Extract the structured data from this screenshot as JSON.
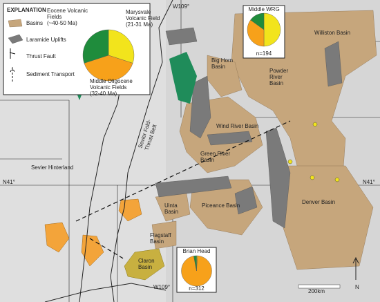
{
  "legend": {
    "title": "EXPLANATION",
    "items": [
      "Basins",
      "Laramide Uplifts",
      "Thrust Fault",
      "Sediment Transport"
    ],
    "pie": {
      "labels": [
        [
          "Marysvale",
          "Volcanic Field",
          "(21-31 Ma)"
        ],
        [
          "Middle Oligocene",
          "Volcanic Fields",
          "(32-40 Ma)"
        ],
        [
          "Eocene Volcanic",
          "Fields",
          "(~40-50 Ma)"
        ]
      ],
      "values": [
        30,
        40,
        30
      ],
      "colors": [
        "#f2e41c",
        "#f7a11a",
        "#1f8c3c"
      ]
    }
  },
  "pies": [
    {
      "title": "Middle WRG",
      "n": "n=194",
      "values": [
        50,
        35,
        15
      ],
      "colors": [
        "#f2e41c",
        "#f7a11a",
        "#1f8c3c"
      ]
    },
    {
      "title": "Brian Head",
      "n": "n=312",
      "values": [
        1,
        96,
        3
      ],
      "colors": [
        "#f2e41c",
        "#f7a11a",
        "#1f8c3c"
      ]
    }
  ],
  "map_labels": [
    {
      "lines": [
        "W109°"
      ]
    },
    {
      "lines": [
        "Williston Basin"
      ]
    },
    {
      "lines": [
        "Big Horn",
        "Basin"
      ]
    },
    {
      "lines": [
        "Powder",
        "River",
        "Basin"
      ]
    },
    {
      "lines": [
        "Wind River Basin"
      ]
    },
    {
      "lines": [
        "Green River",
        "Basin"
      ]
    },
    {
      "lines": [
        "Sevier Hinterland"
      ]
    },
    {
      "lines": [
        "N41°"
      ]
    },
    {
      "lines": [
        "N41°"
      ]
    },
    {
      "lines": [
        "Uinta",
        "Basin"
      ]
    },
    {
      "lines": [
        "Piceance Basin"
      ]
    },
    {
      "lines": [
        "Denver Basin"
      ]
    },
    {
      "lines": [
        "Flagstaff",
        "Basin"
      ]
    },
    {
      "lines": [
        "Claron",
        "Basin"
      ]
    },
    {
      "lines": [
        "W109°"
      ]
    },
    {
      "lines": [
        "200km"
      ]
    },
    {
      "lines": [
        "N"
      ]
    },
    {
      "lines": [
        "Sevier Fold-",
        "Thrust Belt"
      ]
    }
  ]
}
